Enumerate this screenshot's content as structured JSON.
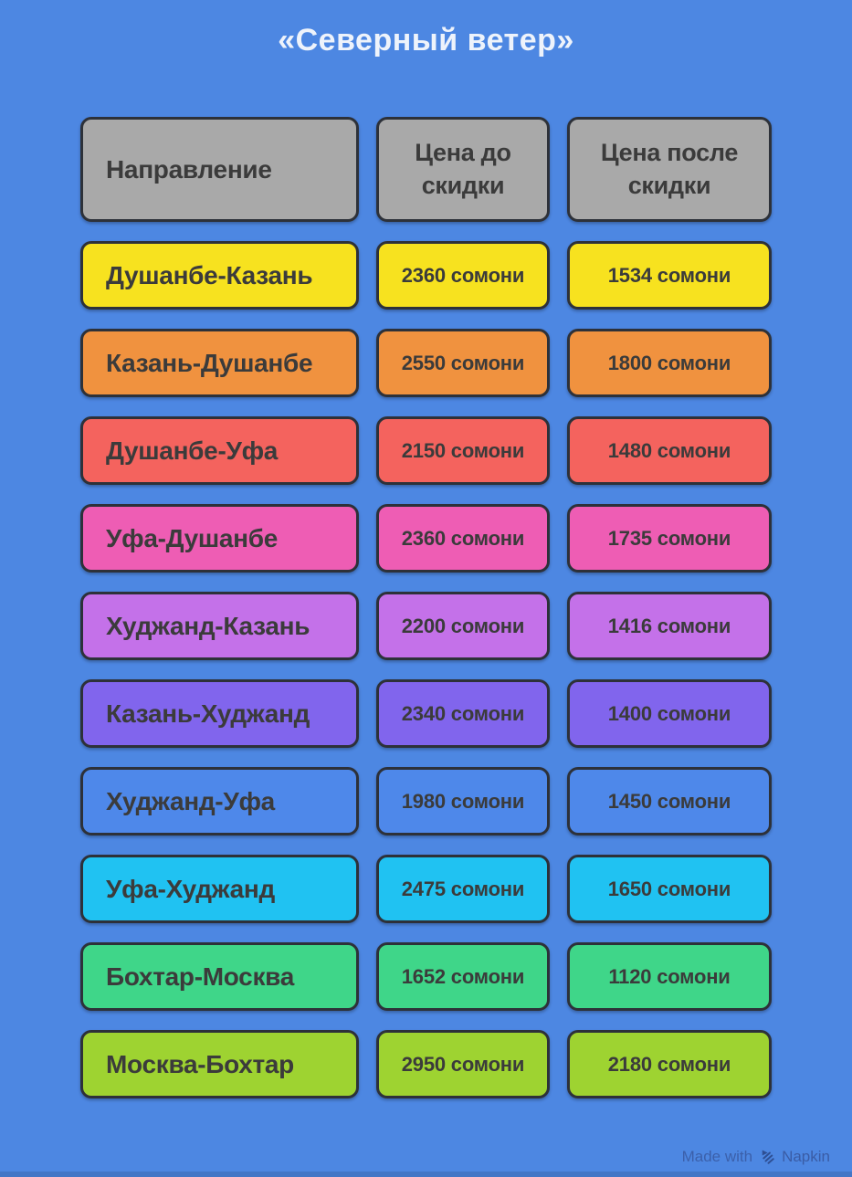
{
  "title": "«Северный ветер»",
  "table": {
    "headers": [
      {
        "label": "Направление"
      },
      {
        "label": "Цена до скидки"
      },
      {
        "label": "Цена после скидки"
      }
    ],
    "rows": [
      {
        "direction": "Душанбе-Казань",
        "price_before": "2360 сомони",
        "price_after": "1534 сомони",
        "color": "#f7e21f"
      },
      {
        "direction": "Казань-Душанбе",
        "price_before": "2550 сомони",
        "price_after": "1800 сомони",
        "color": "#f0923f"
      },
      {
        "direction": "Душанбе-Уфа",
        "price_before": "2150 сомони",
        "price_after": "1480 сомони",
        "color": "#f4635e"
      },
      {
        "direction": "Уфа-Душанбе",
        "price_before": "2360 сомони",
        "price_after": "1735 сомони",
        "color": "#ee5db4"
      },
      {
        "direction": "Худжанд-Казань",
        "price_before": "2200 сомони",
        "price_after": "1416 сомони",
        "color": "#c471e9"
      },
      {
        "direction": "Казань-Худжанд",
        "price_before": "2340 сомони",
        "price_after": "1400 сомони",
        "color": "#8165ed"
      },
      {
        "direction": "Худжанд-Уфа",
        "price_before": "1980 сомони",
        "price_after": "1450 сомони",
        "color": "#4e88ea"
      },
      {
        "direction": "Уфа-Худжанд",
        "price_before": "2475 сомони",
        "price_after": "1650 сомони",
        "color": "#20c2f2"
      },
      {
        "direction": "Бохтар-Москва",
        "price_before": "1652 сомони",
        "price_after": "1120 сомони",
        "color": "#3fd689"
      },
      {
        "direction": "Москва-Бохтар",
        "price_before": "2950 сомони",
        "price_after": "2180 сомони",
        "color": "#9ed331"
      }
    ]
  },
  "watermark": {
    "prefix": "Made with",
    "brand": "Napkin",
    "logo_icon": "napkin-zap-icon"
  },
  "colors": {
    "background": "#4d87e2",
    "header_cell": "#a9a9a9",
    "cell_border": "#2d3139",
    "cell_text": "#3b3b3b",
    "title_text": "#eef3fb",
    "watermark_text": "#3a5ca5"
  },
  "chart_data": {
    "type": "table",
    "title": "«Северный ветер»",
    "columns": [
      "Направление",
      "Цена до скидки",
      "Цена после скидки"
    ],
    "rows": [
      [
        "Душанбе-Казань",
        "2360 сомони",
        "1534 сомони"
      ],
      [
        "Казань-Душанбе",
        "2550 сомони",
        "1800 сомони"
      ],
      [
        "Душанбе-Уфа",
        "2150 сомони",
        "1480 сомони"
      ],
      [
        "Уфа-Душанбе",
        "2360 сомони",
        "1735 сомони"
      ],
      [
        "Худжанд-Казань",
        "2200 сомони",
        "1416 сомони"
      ],
      [
        "Казань-Худжанд",
        "2340 сомони",
        "1400 сомони"
      ],
      [
        "Худжанд-Уфа",
        "1980 сомони",
        "1450 сомони"
      ],
      [
        "Уфа-Худжанд",
        "2475 сомони",
        "1650 сомони"
      ],
      [
        "Бохтар-Москва",
        "1652 сомони",
        "1120 сомони"
      ],
      [
        "Москва-Бохтар",
        "2950 сомони",
        "2180 сомони"
      ]
    ],
    "prices_before_somoni": [
      2360,
      2550,
      2150,
      2360,
      2200,
      2340,
      1980,
      2475,
      1652,
      2950
    ],
    "prices_after_somoni": [
      1534,
      1800,
      1480,
      1735,
      1416,
      1400,
      1450,
      1650,
      1120,
      2180
    ],
    "currency": "сомони",
    "row_colors": [
      "#f7e21f",
      "#f0923f",
      "#f4635e",
      "#ee5db4",
      "#c471e9",
      "#8165ed",
      "#4e88ea",
      "#20c2f2",
      "#3fd689",
      "#9ed331"
    ]
  }
}
